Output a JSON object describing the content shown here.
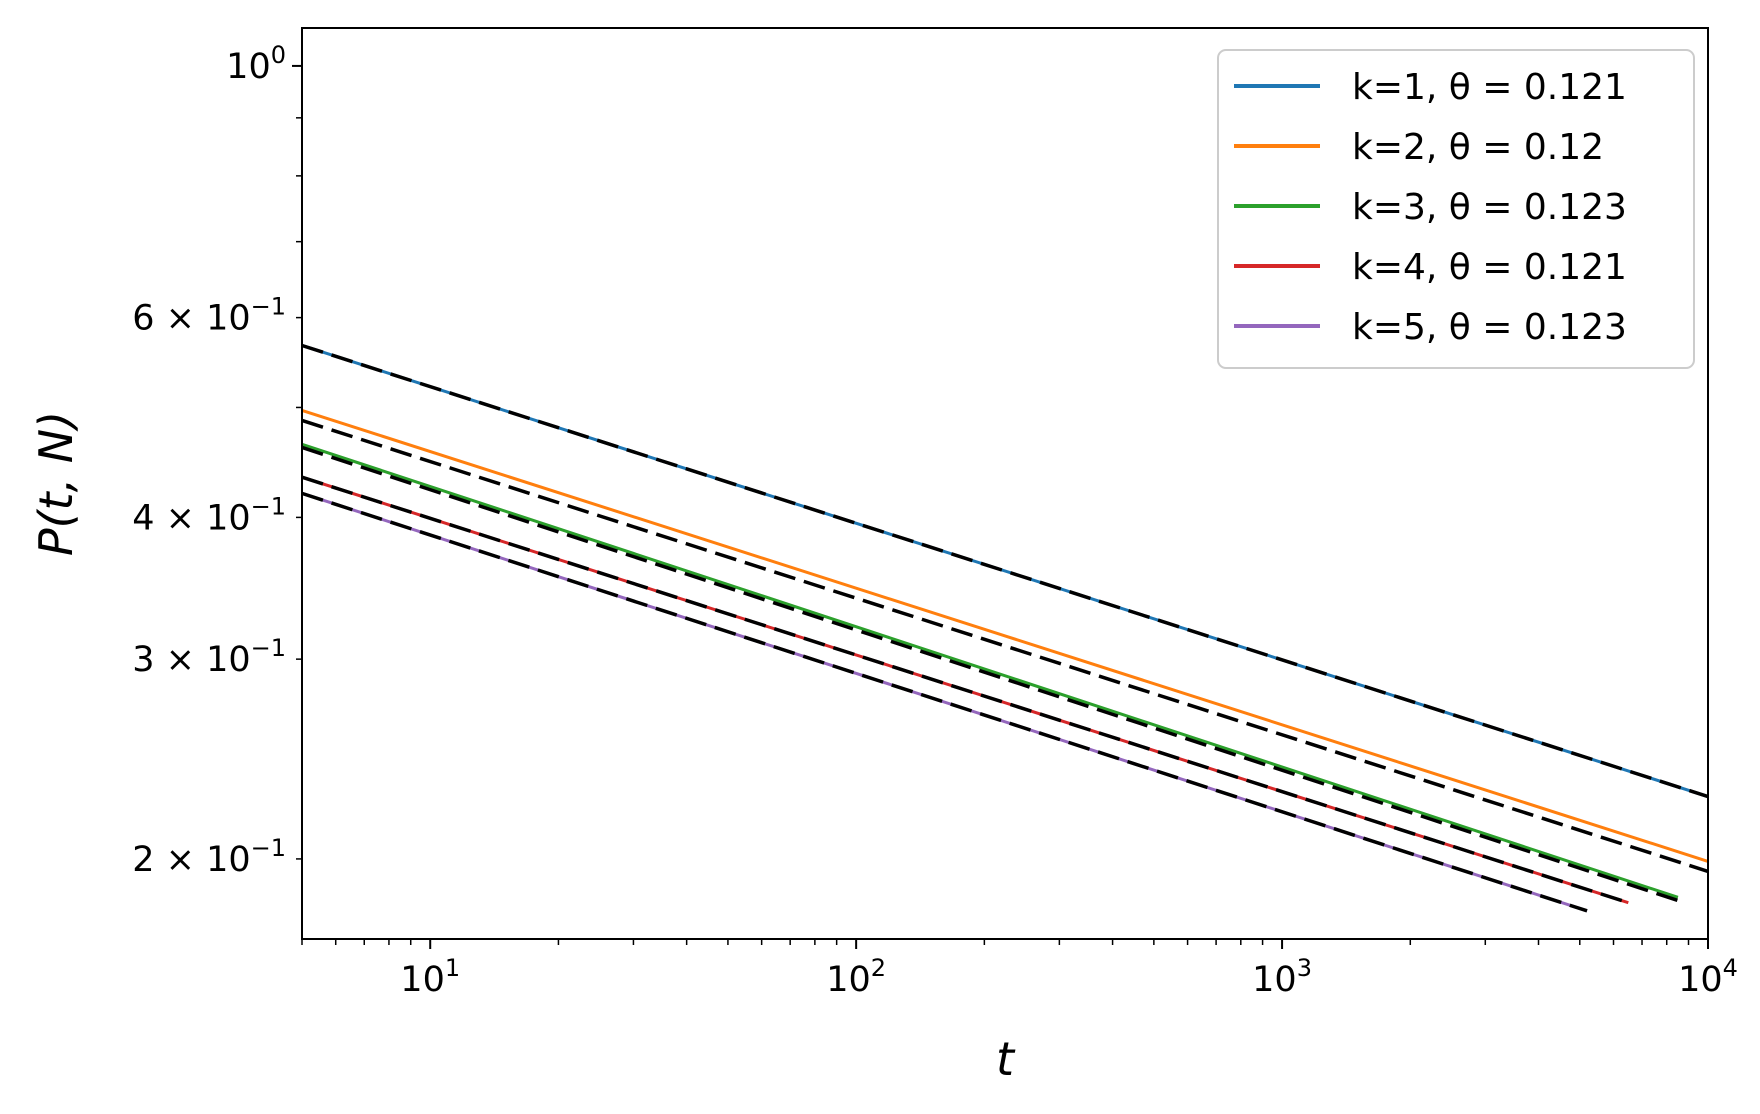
{
  "chart_data": {
    "type": "line",
    "xlabel": "t",
    "ylabel": "P(t, N)",
    "xscale": "log",
    "yscale": "log",
    "xlim": [
      5,
      10000
    ],
    "ylim": [
      0.17,
      1.08
    ],
    "grid": false,
    "legend_position": "top-right",
    "x_tick_labels": [
      {
        "value": 10,
        "base": "10",
        "exp": "1"
      },
      {
        "value": 100,
        "base": "10",
        "exp": "2"
      },
      {
        "value": 1000,
        "base": "10",
        "exp": "3"
      },
      {
        "value": 10000,
        "base": "10",
        "exp": "4"
      }
    ],
    "y_tick_labels": [
      {
        "value": 1.0,
        "mant": "",
        "base": "10",
        "exp": "0"
      },
      {
        "value": 0.6,
        "mant": "6 × ",
        "base": "10",
        "exp": "−1"
      },
      {
        "value": 0.4,
        "mant": "4 × ",
        "base": "10",
        "exp": "−1"
      },
      {
        "value": 0.3,
        "mant": "3 × ",
        "base": "10",
        "exp": "−1"
      },
      {
        "value": 0.2,
        "mant": "2 × ",
        "base": "10",
        "exp": "−1"
      }
    ],
    "fit_line_style": {
      "color": "#000000",
      "dash": "dashed"
    },
    "series": [
      {
        "name": "k=1, θ = 0.121",
        "color": "#1f77b4",
        "x_start": 5,
        "y_start": 0.567,
        "x_end": 10000,
        "y_end": 0.227,
        "fit_x_start": 5,
        "fit_y_start": 0.567
      },
      {
        "name": "k=2, θ = 0.12",
        "color": "#ff7f0e",
        "x_start": 5,
        "y_start": 0.497,
        "x_end": 10000,
        "y_end": 0.199,
        "fit_x_start": 5,
        "fit_y_start": 0.487
      },
      {
        "name": "k=3, θ = 0.123",
        "color": "#2ca02c",
        "x_start": 5,
        "y_start": 0.464,
        "x_end": 8500,
        "y_end": 0.185,
        "fit_x_start": 5,
        "fit_y_start": 0.461
      },
      {
        "name": "k=4, θ = 0.121",
        "color": "#d62728",
        "x_start": 5,
        "y_start": 0.434,
        "x_end": 6500,
        "y_end": 0.183,
        "fit_x_start": 5,
        "fit_y_start": 0.434
      },
      {
        "name": "k=5, θ = 0.123",
        "color": "#9467bd",
        "x_start": 5,
        "y_start": 0.42,
        "x_end": 5200,
        "y_end": 0.18,
        "fit_x_start": 5,
        "fit_y_start": 0.42
      }
    ]
  }
}
